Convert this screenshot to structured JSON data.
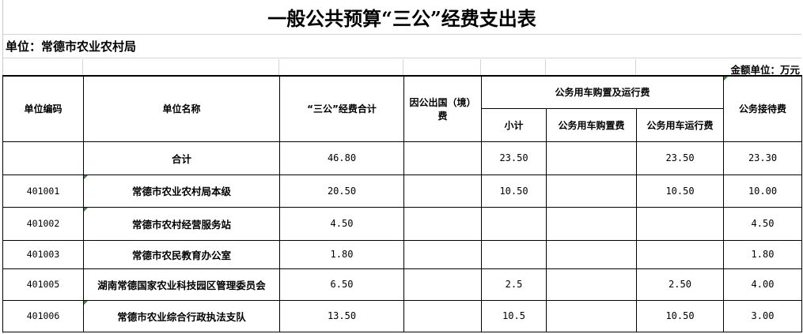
{
  "title": "一般公共预算“三公”经费支出表",
  "unit_line": "单位：常德市农业农村局",
  "amount_unit": "金额单位：万元",
  "colors": {
    "grid": "#000000",
    "comment_marker": "#2e8b2e"
  },
  "headers": {
    "code": "单位编码",
    "name": "单位名称",
    "total": "“三公”经费合计",
    "abroad": "因公出国（境）费",
    "vehicle_group": "公务用车购置及运行费",
    "vehicle_subtotal": "小计",
    "vehicle_purchase": "公务用车购置费",
    "vehicle_operation": "公务用车运行费",
    "reception": "公务接待费"
  },
  "rows": [
    {
      "code": "",
      "name": "合计",
      "total": "46.80",
      "abroad": "",
      "vehicle_subtotal": "23.50",
      "vehicle_purchase": "",
      "vehicle_operation": "23.50",
      "reception": "23.30",
      "marker": false
    },
    {
      "code": "401001",
      "name": "常德市农业农村局本级",
      "total": "20.50",
      "abroad": "",
      "vehicle_subtotal": "10.50",
      "vehicle_purchase": "",
      "vehicle_operation": "10.50",
      "reception": "10.00",
      "marker": true
    },
    {
      "code": "401002",
      "name": "常德市农村经营服务站",
      "total": "4.50",
      "abroad": "",
      "vehicle_subtotal": "",
      "vehicle_purchase": "",
      "vehicle_operation": "",
      "reception": "4.50",
      "marker": true
    },
    {
      "code": "401003",
      "name": "常德市农民教育办公室",
      "total": "1.80",
      "abroad": "",
      "vehicle_subtotal": "",
      "vehicle_purchase": "",
      "vehicle_operation": "",
      "reception": "1.80",
      "marker": false
    },
    {
      "code": "401005",
      "name": "湖南常德国家农业科技园区管理委员会",
      "total": "6.50",
      "abroad": "",
      "vehicle_subtotal": "2.5",
      "vehicle_purchase": "",
      "vehicle_operation": "2.50",
      "reception": "4.00",
      "marker": false
    },
    {
      "code": "401006",
      "name": "常德市农业综合行政执法支队",
      "total": "13.50",
      "abroad": "",
      "vehicle_subtotal": "10.5",
      "vehicle_purchase": "",
      "vehicle_operation": "10.50",
      "reception": "3.00",
      "marker": true
    }
  ]
}
